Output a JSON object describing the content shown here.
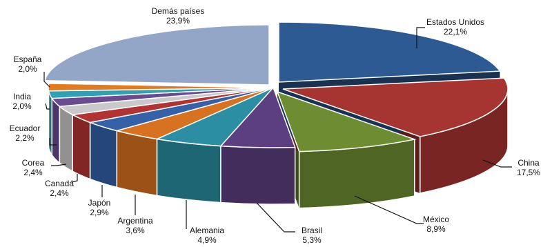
{
  "chart_data": {
    "type": "pie",
    "style": "3d-exploded",
    "legend": "none",
    "slices": [
      {
        "name": "Estados Unidos",
        "label": "22,1%",
        "value": 22.1,
        "color": "#2e5a94"
      },
      {
        "name": "China",
        "label": "17,5%",
        "value": 17.5,
        "color": "#a63431"
      },
      {
        "name": "México",
        "label": "8,9%",
        "value": 8.9,
        "color": "#6e8c32"
      },
      {
        "name": "Brasil",
        "label": "5,3%",
        "value": 5.3,
        "color": "#5b3f80"
      },
      {
        "name": "Alemania",
        "label": "4,9%",
        "value": 4.9,
        "color": "#2b8ea3"
      },
      {
        "name": "Argentina",
        "label": "3,6%",
        "value": 3.6,
        "color": "#d87120"
      },
      {
        "name": "Japón",
        "label": "2,9%",
        "value": 2.9,
        "color": "#3461a8"
      },
      {
        "name": "Canadá",
        "label": "2,4%",
        "value": 2.4,
        "color": "#b33333"
      },
      {
        "name": "Corea",
        "label": "2,4%",
        "value": 2.4,
        "color": "#c9c9c9"
      },
      {
        "name": "Ecuador",
        "label": "2,2%",
        "value": 2.2,
        "color": "#6a4a90"
      },
      {
        "name": "India",
        "label": "2,0%",
        "value": 2.0,
        "color": "#2fa0b5"
      },
      {
        "name": "España",
        "label": "2,0%",
        "value": 2.0,
        "color": "#e07b22"
      },
      {
        "name": "Demás países",
        "label": "23,9%",
        "value": 23.9,
        "color": "#93a6c8"
      }
    ]
  }
}
